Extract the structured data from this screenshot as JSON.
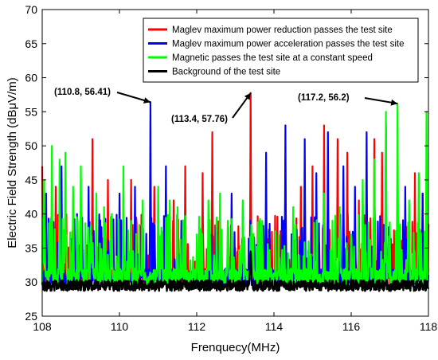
{
  "chart_data": {
    "type": "line",
    "xlabel": "Frenquecy(MHz)",
    "ylabel": "Electric Field Strength (dBμV/m)",
    "xlim": [
      108,
      118
    ],
    "ylim": [
      25,
      70
    ],
    "xticks": [
      108,
      110,
      112,
      114,
      116,
      118
    ],
    "yticks": [
      25,
      30,
      35,
      40,
      45,
      50,
      55,
      60,
      65,
      70
    ],
    "legend_position": "top-right",
    "series": [
      {
        "name": "Maglev maximum power reduction passes the test site",
        "color": "#ff0000",
        "baseline": 30,
        "peaks": [
          [
            108.0,
            47
          ],
          [
            108.35,
            44
          ],
          [
            108.8,
            42
          ],
          [
            109.3,
            51
          ],
          [
            109.7,
            45
          ],
          [
            110.3,
            45
          ],
          [
            110.9,
            44
          ],
          [
            111.4,
            42
          ],
          [
            111.7,
            47
          ],
          [
            112.15,
            46
          ],
          [
            112.4,
            52
          ],
          [
            112.9,
            36
          ],
          [
            113.4,
            57.76
          ],
          [
            114.3,
            48
          ],
          [
            114.7,
            44
          ],
          [
            115.0,
            47
          ],
          [
            115.3,
            53
          ],
          [
            115.65,
            51
          ],
          [
            115.9,
            49
          ],
          [
            116.2,
            42
          ],
          [
            116.6,
            51
          ],
          [
            116.8,
            49
          ],
          [
            117.4,
            40
          ],
          [
            117.65,
            46
          ],
          [
            117.85,
            43
          ]
        ]
      },
      {
        "name": "Maglev maximum power acceleration passes the test site",
        "color": "#0000ff",
        "baseline": 30,
        "peaks": [
          [
            108.1,
            43
          ],
          [
            108.5,
            47
          ],
          [
            108.9,
            40
          ],
          [
            109.2,
            44
          ],
          [
            109.5,
            39
          ],
          [
            110.0,
            43
          ],
          [
            110.4,
            44
          ],
          [
            110.8,
            56.41
          ],
          [
            111.2,
            47
          ],
          [
            111.6,
            39
          ],
          [
            112.5,
            38
          ],
          [
            112.9,
            43
          ],
          [
            113.2,
            42
          ],
          [
            113.8,
            49
          ],
          [
            114.3,
            53
          ],
          [
            114.8,
            51
          ],
          [
            115.1,
            46
          ],
          [
            115.4,
            52
          ],
          [
            115.8,
            47
          ],
          [
            116.1,
            44
          ],
          [
            116.4,
            52
          ],
          [
            116.9,
            53
          ],
          [
            117.4,
            44
          ],
          [
            117.85,
            43
          ]
        ]
      },
      {
        "name": "Magnetic passes the test site at a constant speed",
        "color": "#00ff00",
        "baseline": 30,
        "peaks": [
          [
            108.05,
            45
          ],
          [
            108.25,
            50
          ],
          [
            108.45,
            48
          ],
          [
            108.6,
            49
          ],
          [
            108.8,
            44
          ],
          [
            109.0,
            47
          ],
          [
            109.2,
            38
          ],
          [
            109.4,
            43
          ],
          [
            109.6,
            41
          ],
          [
            109.8,
            40
          ],
          [
            110.1,
            47
          ],
          [
            110.3,
            39
          ],
          [
            110.6,
            42
          ],
          [
            111.0,
            44
          ],
          [
            111.3,
            42
          ],
          [
            111.5,
            41
          ],
          [
            112.0,
            37
          ],
          [
            112.3,
            42
          ],
          [
            112.6,
            43
          ],
          [
            112.8,
            39
          ],
          [
            113.2,
            42
          ],
          [
            113.7,
            39
          ],
          [
            114.5,
            41
          ],
          [
            114.9,
            36
          ],
          [
            115.3,
            43
          ],
          [
            115.7,
            41
          ],
          [
            116.0,
            37
          ],
          [
            116.3,
            45
          ],
          [
            116.6,
            48
          ],
          [
            116.9,
            55
          ],
          [
            117.2,
            56.2
          ],
          [
            117.5,
            42
          ],
          [
            117.75,
            46
          ],
          [
            117.95,
            55
          ]
        ]
      },
      {
        "name": "Background of the test site",
        "color": "#000000",
        "baseline": 29.5,
        "peaks": [
          [
            113.4,
            34.5
          ]
        ]
      }
    ],
    "annotations": [
      {
        "text": "(110.8, 56.41)",
        "x": 110.8,
        "y": 56.41
      },
      {
        "text": "(113.4, 57.76)",
        "x": 113.4,
        "y": 57.76
      },
      {
        "text": "(117.2, 56.2)",
        "x": 117.2,
        "y": 56.2
      }
    ]
  }
}
